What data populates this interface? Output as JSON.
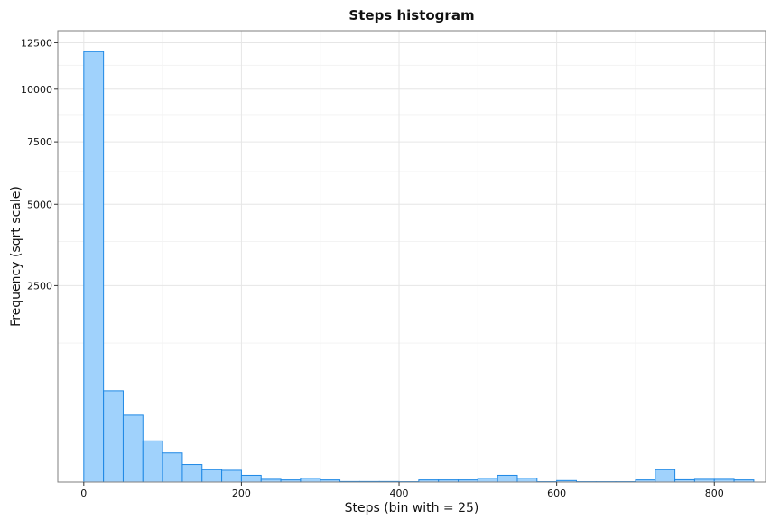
{
  "chart_data": {
    "type": "bar",
    "title": "Steps histogram",
    "xlabel": "Steps (bin with = 25)",
    "ylabel": "Frequency (sqrt scale)",
    "y_scale": "sqrt",
    "xlim": [
      -33,
      865
    ],
    "ylim": [
      0,
      13200
    ],
    "x_ticks": [
      0,
      200,
      400,
      600,
      800
    ],
    "y_ticks": [
      2500,
      5000,
      7500,
      10000,
      12500
    ],
    "grid": true,
    "bin_width": 25,
    "bins_start": -25,
    "bins_end": 850,
    "values": [
      0,
      12000,
      540,
      290,
      110,
      55,
      20,
      10,
      9,
      3,
      0.5,
      0.3,
      1,
      0.3,
      0.02,
      0.02,
      0.02,
      0.01,
      0.3,
      0.3,
      0.3,
      1,
      3,
      1,
      0.01,
      0.15,
      0.01,
      0.01,
      0.01,
      0.3,
      10,
      0.35,
      0.5,
      0.5,
      0.3
    ],
    "fill_color": "#a0d2fc",
    "stroke_color": "#1e88e5"
  }
}
